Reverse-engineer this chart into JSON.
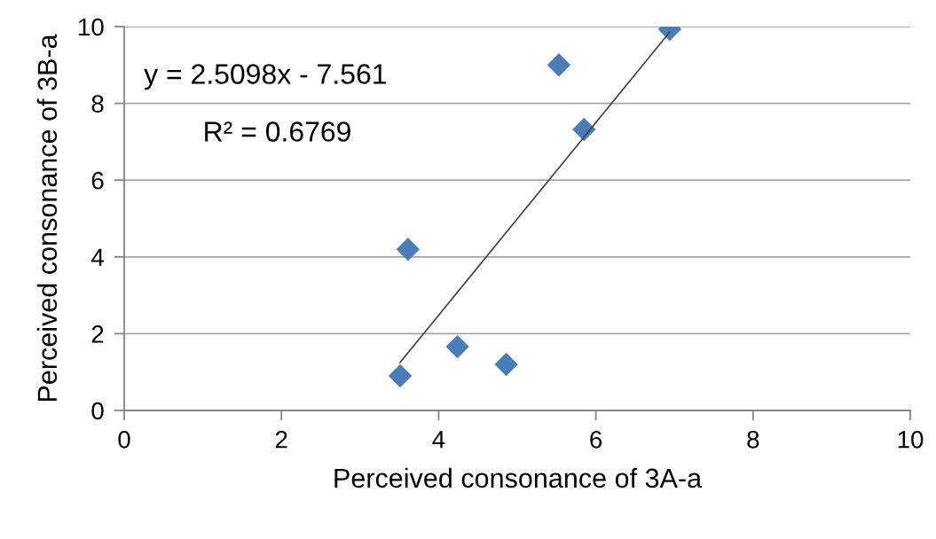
{
  "chart_data": {
    "type": "scatter",
    "xlabel": "Perceived consonance of 3A-a",
    "ylabel": "Perceived consonance of 3B-a",
    "xlim": [
      0,
      10
    ],
    "ylim": [
      0,
      10
    ],
    "xticks": [
      0,
      2,
      4,
      6,
      8,
      10
    ],
    "yticks": [
      0,
      2,
      4,
      6,
      8,
      10
    ],
    "grid": "y",
    "legend": false,
    "series": [
      {
        "marker": "diamond",
        "color": "#4a7ebb",
        "x": [
          3.51,
          3.61,
          4.24,
          4.86,
          5.53,
          5.85,
          6.94
        ],
        "values": [
          0.9,
          4.2,
          1.66,
          1.2,
          9.0,
          7.32,
          9.93
        ]
      },
      {
        "type": "line",
        "marker": "none",
        "color": "#404040",
        "x": [
          3.51,
          6.94
        ],
        "values": [
          1.25,
          9.86
        ]
      }
    ],
    "annotations": [
      "y = 2.5098x - 7.561",
      "R² = 0.6769"
    ]
  }
}
